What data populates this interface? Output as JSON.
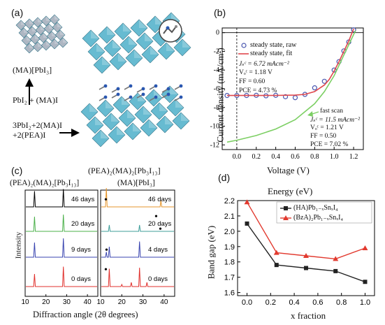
{
  "panel_a": {
    "label": "(a)",
    "small_formula": "(MA)[PbI₃]",
    "reaction1": "PbI₂ + (MA)I",
    "reaction2_line1": "3PbI₂+2(MA)I",
    "reaction2_line2": "+2(PEA)I",
    "big_formula": "(PEA)₂(MA)₂[Pb₃I₁₃]",
    "octahedra_color": "#5fb8cf",
    "small_octahedra_color": "#aab4c0"
  },
  "chart_data": [
    {
      "id": "b",
      "label": "(b)",
      "type": "scatter",
      "xlabel": "Voltage (V)",
      "ylabel": "Current density (mA/cm²)",
      "xlim": [
        -0.15,
        1.3
      ],
      "ylim": [
        -12.5,
        0.5
      ],
      "xticks": [
        0.0,
        0.2,
        0.4,
        0.6,
        0.8,
        1.0,
        1.2
      ],
      "xticklabels": [
        "0.0",
        "0.2",
        "0.4",
        "0.6",
        "0.8",
        "1.0",
        "1.2"
      ],
      "yticks": [
        0,
        -2,
        -4,
        -6,
        -8,
        -10,
        -12
      ],
      "yticklabels": [
        "0",
        "-2",
        "-4",
        "-6",
        "-8",
        "-10",
        "-12"
      ],
      "legend": [
        "steady state, raw",
        "steady state, fit"
      ],
      "series": [
        {
          "name": "steady state, raw",
          "kind": "points",
          "color": "#4a57b0",
          "x": [
            -0.1,
            0.0,
            0.1,
            0.2,
            0.3,
            0.4,
            0.5,
            0.6,
            0.7,
            0.8,
            0.9,
            1.0,
            1.05,
            1.1,
            1.15,
            1.2
          ],
          "y": [
            -6.72,
            -6.72,
            -6.72,
            -6.7,
            -6.75,
            -6.7,
            -6.85,
            -6.95,
            -6.6,
            -5.9,
            -5.2,
            -4.0,
            -3.1,
            -1.95,
            -1.0,
            0.3
          ]
        },
        {
          "name": "steady state, fit",
          "kind": "line",
          "color": "#e0474c",
          "x": [
            -0.1,
            0.0,
            0.2,
            0.4,
            0.6,
            0.7,
            0.8,
            0.9,
            0.95,
            1.0,
            1.05,
            1.1,
            1.15,
            1.2
          ],
          "y": [
            -6.72,
            -6.72,
            -6.72,
            -6.71,
            -6.68,
            -6.6,
            -6.3,
            -5.6,
            -5.0,
            -4.1,
            -3.1,
            -2.0,
            -0.9,
            0.4
          ]
        },
        {
          "name": "fast scan",
          "kind": "line",
          "color": "#7ccf63",
          "x": [
            -0.1,
            0.0,
            0.2,
            0.4,
            0.6,
            0.8,
            0.9,
            1.0,
            1.05,
            1.1,
            1.15,
            1.2,
            1.22
          ],
          "y": [
            -11.7,
            -11.5,
            -11.0,
            -10.3,
            -9.3,
            -7.6,
            -6.3,
            -4.6,
            -3.5,
            -2.4,
            -1.3,
            -0.2,
            0.2
          ]
        }
      ],
      "annotations": {
        "steady": [
          "Jₛᶜ = 6.72 mAcm⁻²",
          "Vₒᶜ = 1.18 V",
          "FF = 0.60",
          "PCE = 4.73 %"
        ],
        "fast_label": "fast scan",
        "fast": [
          "Jₛᶜ = 11.5 mAcm⁻²",
          "Vₒᶜ = 1.21 V",
          "FF = 0.50",
          "PCE = 7.02 %"
        ]
      }
    },
    {
      "id": "c",
      "label": "(c)",
      "type": "line",
      "xlabel": "Diffraction angle (2θ degrees)",
      "ylabel": "Intensity",
      "subplots": [
        {
          "title": "(PEA)₂(MA)₂[Pb₃I₁₃]",
          "xlim": [
            10,
            45
          ],
          "xticks": [
            10,
            20,
            30,
            40
          ],
          "xticklabels": [
            "10",
            "20",
            "30",
            "40"
          ],
          "series": [
            {
              "name": "46 days",
              "color": "#000000",
              "peaks": [
                [
                  14.5,
                  0.75
                ],
                [
                  28.4,
                  0.85
                ]
              ]
            },
            {
              "name": "20 days",
              "color": "#4bb04a",
              "peaks": [
                [
                  14.5,
                  0.7
                ],
                [
                  28.4,
                  0.8
                ]
              ]
            },
            {
              "name": "9 days",
              "color": "#3a45b0",
              "peaks": [
                [
                  14.5,
                  0.7
                ],
                [
                  28.4,
                  0.9
                ]
              ]
            },
            {
              "name": "0 days",
              "color": "#e0302c",
              "peaks": [
                [
                  14.5,
                  0.6
                ],
                [
                  28.4,
                  0.95
                ]
              ]
            }
          ]
        },
        {
          "title": "(MA)[PbI₃]",
          "xlim": [
            10,
            45
          ],
          "xticks": [
            10,
            20,
            30,
            40
          ],
          "xticklabels": [
            "10",
            "20",
            "30",
            "40"
          ],
          "series": [
            {
              "name": "46 days",
              "color": "#e6962c",
              "peaks": [
                [
                  12.7,
                  0.9
                ],
                [
                  38.5,
                  0.3
                ]
              ]
            },
            {
              "name": "20 days",
              "color": "#3f9e9a",
              "peaks": [
                [
                  14.1,
                  0.3
                ],
                [
                  28.4,
                  0.3
                ]
              ]
            },
            {
              "name": "4 days",
              "color": "#3a45b0",
              "peaks": [
                [
                  12.7,
                  0.25
                ],
                [
                  14.1,
                  0.5
                ],
                [
                  28.4,
                  0.75
                ]
              ]
            },
            {
              "name": "0 days",
              "color": "#e0302c",
              "peaks": [
                [
                  14.1,
                  0.85
                ],
                [
                  20.0,
                  0.1
                ],
                [
                  24.5,
                  0.2
                ],
                [
                  28.4,
                  0.9
                ],
                [
                  31.9,
                  0.2
                ]
              ]
            }
          ]
        }
      ]
    },
    {
      "id": "d",
      "label": "(d)",
      "type": "line",
      "title": "Energy (eV)",
      "xlabel": "x fraction",
      "ylabel": "Band gap (eV)",
      "xlim": [
        -0.08,
        1.08
      ],
      "ylim": [
        1.58,
        2.2
      ],
      "xticks": [
        0.0,
        0.2,
        0.4,
        0.6,
        0.8,
        1.0
      ],
      "xticklabels": [
        "0.0",
        "0.2",
        "0.4",
        "0.6",
        "0.8",
        "1.0"
      ],
      "yticks": [
        1.6,
        1.7,
        1.8,
        1.9,
        2.0,
        2.1,
        2.2
      ],
      "yticklabels": [
        "1.6",
        "1.7",
        "1.8",
        "1.9",
        "2.0",
        "2.1",
        "2.2"
      ],
      "legend_position": "top-right",
      "series": [
        {
          "name": "(HA)Pb₁₋ₓSnₓI₄",
          "color": "#222222",
          "marker": "square",
          "x": [
            0.0,
            0.25,
            0.5,
            0.75,
            1.0
          ],
          "y": [
            2.05,
            1.78,
            1.76,
            1.74,
            1.67
          ]
        },
        {
          "name": "(BzA)₂Pb₁₋ₓSnₓI₄",
          "color": "#e23a2f",
          "marker": "triangle",
          "x": [
            0.0,
            0.25,
            0.5,
            0.75,
            1.0
          ],
          "y": [
            2.19,
            1.86,
            1.84,
            1.82,
            1.89
          ]
        }
      ]
    }
  ]
}
